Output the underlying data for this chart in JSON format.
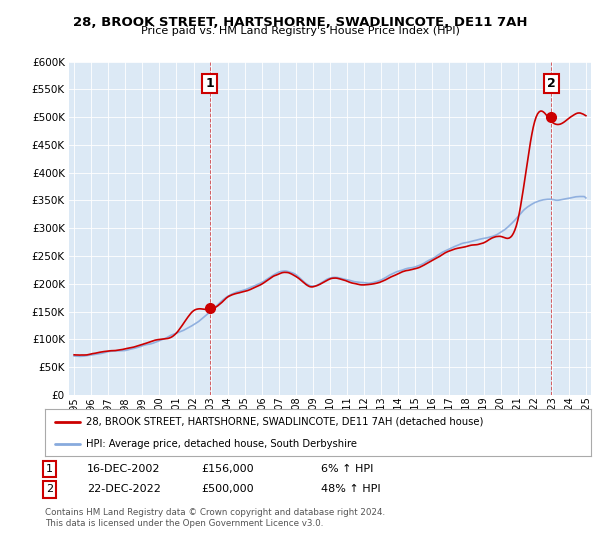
{
  "title": "28, BROOK STREET, HARTSHORNE, SWADLINCOTE, DE11 7AH",
  "subtitle": "Price paid vs. HM Land Registry's House Price Index (HPI)",
  "background_color": "#ffffff",
  "plot_bg_color": "#dce9f5",
  "grid_color": "#ffffff",
  "transaction1_x": 2002.96,
  "transaction1_price": 156000,
  "transaction2_x": 2022.96,
  "transaction2_price": 500000,
  "legend_line1": "28, BROOK STREET, HARTSHORNE, SWADLINCOTE, DE11 7AH (detached house)",
  "legend_line2": "HPI: Average price, detached house, South Derbyshire",
  "table_row1": [
    "1",
    "16-DEC-2002",
    "£156,000",
    "6% ↑ HPI"
  ],
  "table_row2": [
    "2",
    "22-DEC-2022",
    "£500,000",
    "48% ↑ HPI"
  ],
  "footnote": "Contains HM Land Registry data © Crown copyright and database right 2024.\nThis data is licensed under the Open Government Licence v3.0.",
  "red_color": "#cc0000",
  "blue_color": "#88aadd",
  "ylim": [
    0,
    600000
  ],
  "xlim_left": 1994.7,
  "xlim_right": 2025.3
}
